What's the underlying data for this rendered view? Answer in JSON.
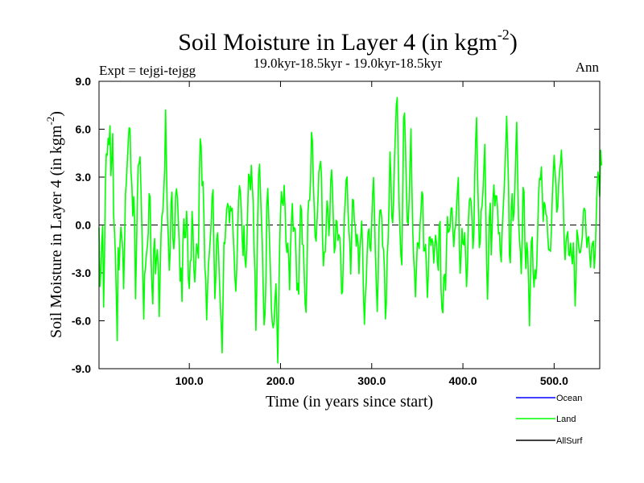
{
  "chart_data": {
    "type": "line",
    "title_main": "Soil Moisture in Layer 4 (in kgm",
    "title_sup": "-2",
    "title_close": ")",
    "subtitle_left": "Expt = tejgi-tejgg",
    "subtitle_center": "19.0kyr-18.5kyr - 19.0kyr-18.5kyr",
    "subtitle_right": "Ann",
    "xlabel": "Time (in years since start)",
    "ylabel_main": "Soil Moisture in Layer 4 (in kgm",
    "ylabel_sup": "-2",
    "ylabel_close": ")",
    "xlim": [
      1,
      550
    ],
    "ylim": [
      -9,
      9
    ],
    "x_ticks": [
      100,
      200,
      300,
      400,
      500
    ],
    "x_tick_labels": [
      "100.0",
      "200.0",
      "300.0",
      "400.0",
      "500.0"
    ],
    "y_ticks": [
      -9,
      -6,
      -3,
      0,
      3,
      6,
      9
    ],
    "y_tick_labels": [
      "-9.0",
      "-6.0",
      "-3.0",
      "0.0",
      "3.0",
      "6.0",
      "9.0"
    ],
    "zero_line": 0,
    "legend": [
      {
        "name": "Ocean",
        "color": "#0000ff"
      },
      {
        "name": "Land",
        "color": "#00ff00"
      },
      {
        "name": "AllSurf",
        "color": "#000000"
      }
    ],
    "series": [
      {
        "name": "Land",
        "color": "#00ff00",
        "x_start": 1,
        "x_step": 1,
        "values": [
          -0.16,
          -3.85,
          -2.93,
          -1.15,
          -0.07,
          -5.14,
          -2.08,
          2.6,
          4.46,
          4.37,
          5.43,
          5.03,
          6.22,
          3.09,
          4.13,
          5.72,
          0.61,
          -0.42,
          -1.92,
          -4.55,
          -7.24,
          -1.42,
          -2.8,
          -1.16,
          -0.12,
          -0.79,
          -1.52,
          -3.99,
          -1.36,
          1.94,
          2.72,
          3.94,
          5.15,
          6.09,
          6.03,
          3.37,
          2.51,
          0.57,
          1.78,
          0.41,
          -4.62,
          -1.95,
          1.54,
          3.72,
          3.88,
          4.27,
          2.2,
          -0.17,
          -2.9,
          -5.89,
          -3.12,
          -2.61,
          -1.81,
          -1.34,
          -0.5,
          1.97,
          1.76,
          -1.91,
          -3.87,
          -4.94,
          -1.51,
          -0.85,
          -3.05,
          -2.14,
          -1.55,
          -2.79,
          -5.73,
          -3.12,
          -0.66,
          0.56,
          0.88,
          2.13,
          3.49,
          7.21,
          3.58,
          0.57,
          -0.84,
          -2.84,
          -1.77,
          1.41,
          2.06,
          -0.83,
          -1.49,
          -0.67,
          1.84,
          2.27,
          1.66,
          0.29,
          -1.24,
          -3.52,
          -2.7,
          -4.79,
          -1.11,
          0.39,
          -0.81,
          -0.77,
          0.87,
          -0.36,
          -3.39,
          -3.98,
          -2.25,
          -2.22,
          0.85,
          -0.25,
          -2.77,
          -3.57,
          -2.45,
          -1.18,
          -1.52,
          -2.07,
          3.0,
          5.4,
          4.93,
          2.47,
          2.72,
          0.62,
          -2.63,
          -3.38,
          -5.95,
          -4.07,
          -2.47,
          -1.74,
          -0.88,
          0.17,
          1.74,
          2.21,
          -1.48,
          -4.61,
          -3.35,
          -0.94,
          -0.49,
          -1.6,
          -3.42,
          -4.96,
          -6.23,
          -8.0,
          -4.75,
          -1.09,
          -1.16,
          -0.06,
          0.97,
          1.35,
          1.14,
          0.13,
          1.18,
          0.89,
          1.05,
          -0.45,
          -1.73,
          -3.31,
          -4.15,
          -2.79,
          -0.49,
          1.54,
          2.46,
          2.08,
          0.96,
          -0.85,
          -1.92,
          -0.03,
          -2.13,
          -2.65,
          -1.42,
          0.89,
          3.19,
          3.01,
          2.2,
          3.74,
          2.5,
          1.47,
          -1.4,
          -3.04,
          -6.6,
          -3.87,
          0.47,
          3.12,
          3.81,
          2.13,
          0.41,
          -1.09,
          -3.97,
          -6.26,
          -5.59,
          -3.5,
          1.18,
          2.29,
          0.66,
          -1.15,
          -2.99,
          -5.23,
          -6.1,
          -6.44,
          -6.04,
          -4.65,
          -3.68,
          -5.94,
          -8.64,
          -4.97,
          -1.45,
          0.74,
          2.09,
          1.4,
          1.23,
          2.49,
          1.07,
          -1.1,
          -1.72,
          -1.13,
          -2.15,
          -4.06,
          -1.43,
          0.27,
          1.34,
          -0.41,
          -0.16,
          -0.25,
          -1.85,
          -4.09,
          -3.65,
          -4.34,
          -1.05,
          1.23,
          0.95,
          -1.21,
          -1.27,
          -3.03,
          -4.93,
          -5.47,
          -2.99,
          0.66,
          1.54,
          1.55,
          2.92,
          5.8,
          5.28,
          2.61,
          1.03,
          -0.72,
          -1.01,
          0.19,
          1.47,
          3.29,
          3.67,
          3.99,
          2.97,
          -0.75,
          -2.56,
          -1.71,
          -1.69,
          -0.23,
          1.51,
          0.98,
          -0.67,
          0.31,
          2.73,
          3.45,
          2.27,
          0.14,
          -1.74,
          -1.37,
          0.3,
          0.19,
          -0.97,
          -0.62,
          -0.8,
          -1.88,
          -4.31,
          -4.2,
          -1.82,
          0.56,
          1.59,
          2.83,
          3.01,
          0.89,
          -0.33,
          -1.14,
          -3.07,
          -0.75,
          1.61,
          1.55,
          0.18,
          -0.03,
          -1.33,
          -0.59,
          -1.19,
          -3.05,
          -1.49,
          -0.77,
          0.25,
          -1.38,
          -4.42,
          -6.22,
          -4.46,
          -3.6,
          -1.78,
          -0.47,
          -0.24,
          -1.38,
          -1.64,
          0.21,
          1.91,
          2.98,
          0.88,
          -1.8,
          -3.56,
          -5.42,
          -3.47,
          -0.15,
          0.91,
          0.95,
          0.45,
          -1.32,
          -1.56,
          -2.79,
          -5.88,
          -4.94,
          -1.94,
          -0.91,
          1.22,
          4.57,
          3.09,
          0.53,
          0.13,
          1.55,
          4.12,
          5.86,
          7.53,
          7.98,
          4.37,
          1.4,
          -0.45,
          -1.89,
          -2.5,
          2.04,
          6.71,
          7.01,
          4.98,
          2.28,
          0.22,
          0.06,
          1.55,
          3.72,
          6.03,
          2.58,
          -0.35,
          -2.1,
          -3.01,
          -4.5,
          -2.84,
          -1.11,
          -1.15,
          -1.47,
          0.02,
          0.85,
          2.08,
          1.89,
          -1.63,
          -1.62,
          -1.22,
          -2.64,
          -4.54,
          -3.22,
          -0.78,
          -0.74,
          -1.28,
          -0.87,
          -1.08,
          -2.38,
          -1.48,
          -0.64,
          -1.12,
          -2.32,
          -2.84,
          -0.02,
          0.22,
          -3.99,
          -5.24,
          -5.5,
          -3.26,
          -3.09,
          -4.08,
          -1.36,
          0.53,
          -0.46,
          -0.37,
          -0.09,
          1.05,
          1.07,
          -0.38,
          -1.35,
          -0.38,
          -0.05,
          1.04,
          2.14,
          2.98,
          -1.36,
          -3.02,
          -1.83,
          -0.22,
          -1.17,
          -1.25,
          -0.49,
          -2.03,
          -3.86,
          -2.62,
          0.16,
          1.5,
          1.69,
          1.48,
          0.29,
          -1.47,
          -0.57,
          3.15,
          5.35,
          6.73,
          3.25,
          0.96,
          -1.42,
          -1.03,
          0.88,
          1.22,
          2.12,
          3.59,
          5.05,
          1.41,
          -2.51,
          -4.65,
          -2.41,
          0.51,
          1.37,
          -1.87,
          -0.37,
          1.7,
          2.51,
          1.19,
          1.83,
          1.82,
          0.95,
          -0.55,
          -0.48,
          -1.7,
          -2.31,
          -0.43,
          0.85,
          1.96,
          3.4,
          4.99,
          6.82,
          4.82,
          2.56,
          -1.92,
          -2.37,
          0.95,
          1.96,
          0.27,
          0.76,
          2.3,
          4.64,
          6.43,
          3.24,
          0.33,
          -0.91,
          -1.69,
          -3.05,
          -0.73,
          2.35,
          2.08,
          -1.31,
          -2.73,
          -1.09,
          -1.68,
          -3.73,
          -6.31,
          -3.53,
          -1.03,
          -0.75,
          -3.03,
          -3.89,
          -2.81,
          -3.37,
          -2.44,
          -0.25,
          1.92,
          2.93,
          2.84,
          3.64,
          2.03,
          0.22,
          1.42,
          1.27,
          0.67,
          0.55,
          -0.7,
          -1.56,
          -1.54,
          -1.65,
          -0.29,
          1.76,
          3.14,
          4.36,
          3.37,
          2.39,
          0.8,
          1.13,
          2.56,
          3.38,
          3.84,
          4.7,
          3.25,
          1.51,
          -1.03,
          -2.17,
          -1.14,
          -0.64,
          -0.42,
          -1.87,
          -1.93,
          -1.14,
          -1.88,
          -2.44,
          -1.12,
          -2.43,
          -5.07,
          -3.47,
          -0.32,
          -0.68,
          -1.38,
          -1.75,
          -1.69,
          -1.21,
          -0.69,
          0.84,
          1.05,
          0.9,
          -0.49,
          -1.41,
          -0.81,
          -0.73,
          -1.89,
          -2.65,
          -1.55,
          -1.14,
          -1.02,
          -2.71,
          -1.86,
          0.13,
          2.05,
          3.32,
          2.98,
          1.79,
          4.68,
          3.73
        ]
      }
    ]
  }
}
